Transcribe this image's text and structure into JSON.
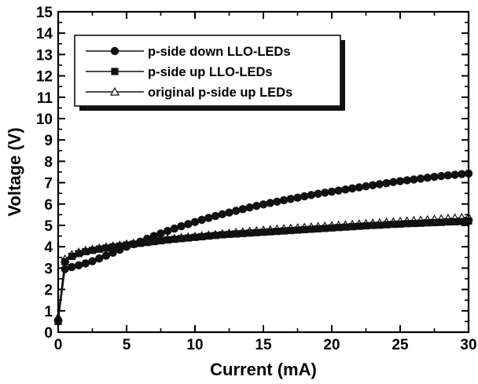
{
  "chart_data": {
    "type": "line",
    "title": "",
    "xlabel": "Current (mA)",
    "ylabel": "Voltage (V)",
    "xlim": [
      0,
      30
    ],
    "ylim": [
      0,
      15
    ],
    "xticks": [
      0,
      5,
      10,
      15,
      20,
      25,
      30
    ],
    "yticks": [
      0,
      1,
      2,
      3,
      4,
      5,
      6,
      7,
      8,
      9,
      10,
      11,
      12,
      13,
      14,
      15
    ],
    "grid": false,
    "legend_position": "top-left",
    "series": [
      {
        "name": "p-side down LLO-LEDs",
        "marker": "circle-filled",
        "x": [
          0,
          0.5,
          1,
          1.5,
          2,
          2.5,
          3,
          3.5,
          4,
          4.5,
          5,
          5.5,
          6,
          6.5,
          7,
          7.5,
          8,
          8.5,
          9,
          9.5,
          10,
          10.5,
          11,
          11.5,
          12,
          12.5,
          13,
          13.5,
          14,
          14.5,
          15,
          15.5,
          16,
          16.5,
          17,
          17.5,
          18,
          18.5,
          19,
          19.5,
          20,
          20.5,
          21,
          21.5,
          22,
          22.5,
          23,
          23.5,
          24,
          24.5,
          25,
          25.5,
          26,
          26.5,
          27,
          27.5,
          28,
          28.5,
          29,
          29.5,
          30
        ],
        "y": [
          0.55,
          2.95,
          3.05,
          3.13,
          3.22,
          3.32,
          3.45,
          3.58,
          3.72,
          3.86,
          4.0,
          4.12,
          4.24,
          4.37,
          4.5,
          4.62,
          4.74,
          4.85,
          4.96,
          5.06,
          5.16,
          5.26,
          5.35,
          5.44,
          5.52,
          5.6,
          5.68,
          5.76,
          5.84,
          5.91,
          5.98,
          6.05,
          6.11,
          6.18,
          6.24,
          6.3,
          6.36,
          6.42,
          6.48,
          6.53,
          6.58,
          6.63,
          6.68,
          6.73,
          6.78,
          6.83,
          6.88,
          6.93,
          6.98,
          7.03,
          7.07,
          7.11,
          7.15,
          7.19,
          7.23,
          7.27,
          7.31,
          7.34,
          7.37,
          7.4,
          7.43
        ]
      },
      {
        "name": "p-side up LLO-LEDs",
        "marker": "square-filled",
        "x": [
          0,
          0.5,
          1,
          1.5,
          2,
          2.5,
          3,
          3.5,
          4,
          4.5,
          5,
          5.5,
          6,
          6.5,
          7,
          7.5,
          8,
          8.5,
          9,
          9.5,
          10,
          10.5,
          11,
          11.5,
          12,
          12.5,
          13,
          13.5,
          14,
          14.5,
          15,
          15.5,
          16,
          16.5,
          17,
          17.5,
          18,
          18.5,
          19,
          19.5,
          20,
          20.5,
          21,
          21.5,
          22,
          22.5,
          23,
          23.5,
          24,
          24.5,
          25,
          25.5,
          26,
          26.5,
          27,
          27.5,
          28,
          28.5,
          29,
          29.5,
          30
        ],
        "y": [
          0.5,
          3.3,
          3.55,
          3.68,
          3.77,
          3.83,
          3.89,
          3.94,
          3.99,
          4.03,
          4.08,
          4.12,
          4.16,
          4.2,
          4.24,
          4.28,
          4.32,
          4.35,
          4.38,
          4.41,
          4.44,
          4.47,
          4.5,
          4.53,
          4.56,
          4.58,
          4.6,
          4.62,
          4.64,
          4.66,
          4.68,
          4.7,
          4.72,
          4.74,
          4.76,
          4.78,
          4.8,
          4.82,
          4.84,
          4.86,
          4.88,
          4.9,
          4.92,
          4.94,
          4.96,
          4.98,
          5.0,
          5.01,
          5.03,
          5.05,
          5.06,
          5.08,
          5.09,
          5.1,
          5.12,
          5.13,
          5.14,
          5.16,
          5.17,
          5.18,
          5.2
        ]
      },
      {
        "name": "original p-side up LEDs",
        "marker": "triangle-open",
        "x": [
          0,
          0.5,
          1,
          1.5,
          2,
          2.5,
          3,
          3.5,
          4,
          4.5,
          5,
          5.5,
          6,
          6.5,
          7,
          7.5,
          8,
          8.5,
          9,
          9.5,
          10,
          10.5,
          11,
          11.5,
          12,
          12.5,
          13,
          13.5,
          14,
          14.5,
          15,
          15.5,
          16,
          16.5,
          17,
          17.5,
          18,
          18.5,
          19,
          19.5,
          20,
          20.5,
          21,
          21.5,
          22,
          22.5,
          23,
          23.5,
          24,
          24.5,
          25,
          25.5,
          26,
          26.5,
          27,
          27.5,
          28,
          28.5,
          29,
          29.5,
          30
        ],
        "y": [
          0.7,
          3.42,
          3.63,
          3.74,
          3.82,
          3.88,
          3.93,
          3.98,
          4.03,
          4.07,
          4.12,
          4.16,
          4.2,
          4.24,
          4.28,
          4.32,
          4.36,
          4.39,
          4.42,
          4.45,
          4.48,
          4.51,
          4.54,
          4.57,
          4.6,
          4.63,
          4.66,
          4.69,
          4.72,
          4.74,
          4.77,
          4.79,
          4.82,
          4.84,
          4.86,
          4.88,
          4.9,
          4.92,
          4.94,
          4.96,
          4.98,
          5.0,
          5.02,
          5.04,
          5.06,
          5.08,
          5.1,
          5.12,
          5.14,
          5.16,
          5.18,
          5.2,
          5.22,
          5.24,
          5.26,
          5.28,
          5.3,
          5.32,
          5.34,
          5.36,
          5.38
        ]
      }
    ]
  }
}
